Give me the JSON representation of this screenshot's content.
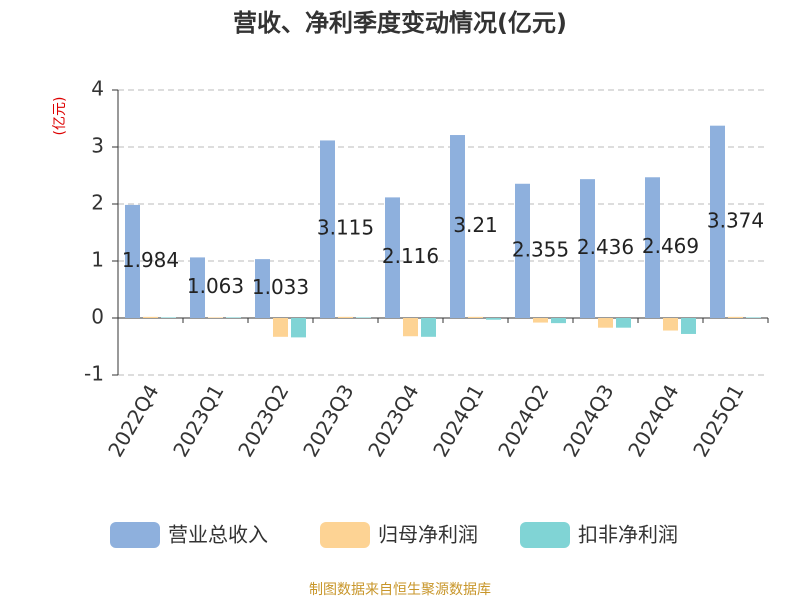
{
  "chart_data": {
    "type": "bar",
    "title": "营收、净利季度变动情况(亿元)",
    "y_label": "(亿元)",
    "source": "制图数据来自恒生聚源数据库",
    "categories": [
      "2022Q4",
      "2023Q1",
      "2023Q2",
      "2023Q3",
      "2023Q4",
      "2024Q1",
      "2024Q2",
      "2024Q3",
      "2024Q4",
      "2025Q1"
    ],
    "series": [
      {
        "name": "营业总收入",
        "color": "#8eb0dd",
        "show_labels": true,
        "values": [
          1.984,
          1.063,
          1.033,
          3.115,
          2.116,
          3.21,
          2.355,
          2.436,
          2.469,
          3.374
        ]
      },
      {
        "name": "归母净利润",
        "color": "#fdd394",
        "show_labels": false,
        "values": [
          0.02,
          0.01,
          -0.33,
          0.02,
          -0.32,
          0.02,
          -0.08,
          -0.17,
          -0.22,
          0.02
        ]
      },
      {
        "name": "扣非净利润",
        "color": "#80d4d5",
        "show_labels": false,
        "values": [
          0.01,
          0.01,
          -0.34,
          0.01,
          -0.33,
          -0.03,
          -0.09,
          -0.17,
          -0.28,
          0.01
        ]
      }
    ],
    "ylim": [
      -1,
      4
    ],
    "yticks": [
      -1,
      0,
      1,
      2,
      3,
      4
    ],
    "grid": true,
    "legend": "bottom"
  }
}
